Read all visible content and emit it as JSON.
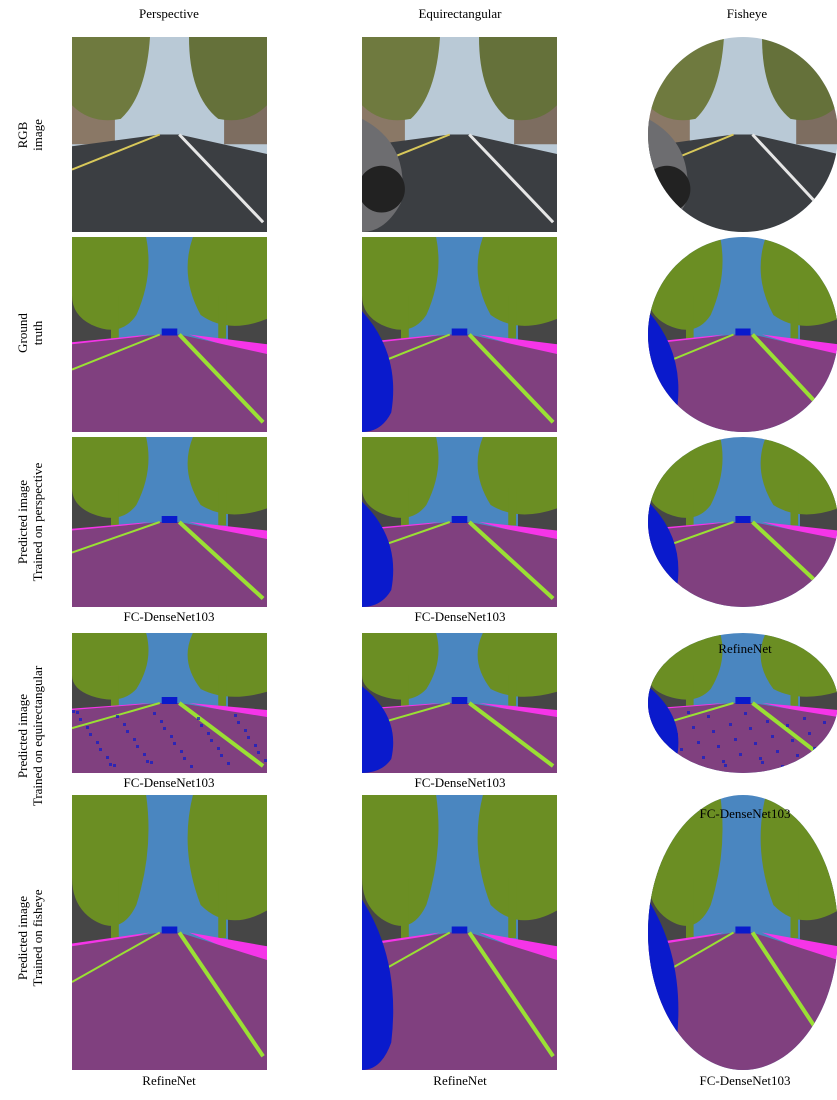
{
  "columns": [
    "Perspective",
    "Equirectangular",
    "Fisheye"
  ],
  "rows": [
    {
      "label_lines": [
        "RGB",
        "image"
      ],
      "captions": [
        "",
        "",
        ""
      ]
    },
    {
      "label_lines": [
        "Ground",
        "truth"
      ],
      "captions": [
        "",
        "",
        ""
      ]
    },
    {
      "label_lines": [
        "Predicted image",
        "Trained on perspective"
      ],
      "captions": [
        "FC-DenseNet103",
        "FC-DenseNet103",
        "RefineNet"
      ]
    },
    {
      "label_lines": [
        "Predicted image",
        "Trained on equirectangular"
      ],
      "captions": [
        "FC-DenseNet103",
        "FC-DenseNet103",
        "FC-DenseNet103"
      ]
    },
    {
      "label_lines": [
        "Predicted image",
        "Trained on fisheye"
      ],
      "captions": [
        "RefineNet",
        "RefineNet",
        "FC-DenseNet103"
      ]
    }
  ],
  "colors": {
    "sky": "#4a86c0",
    "vegetation": "#6b8e23",
    "building": "#464646",
    "road": "#80407f",
    "sidewalk": "#f535e8",
    "lane": "#9ae034",
    "vehicle": "#0a1acc",
    "pole": "#999999"
  }
}
